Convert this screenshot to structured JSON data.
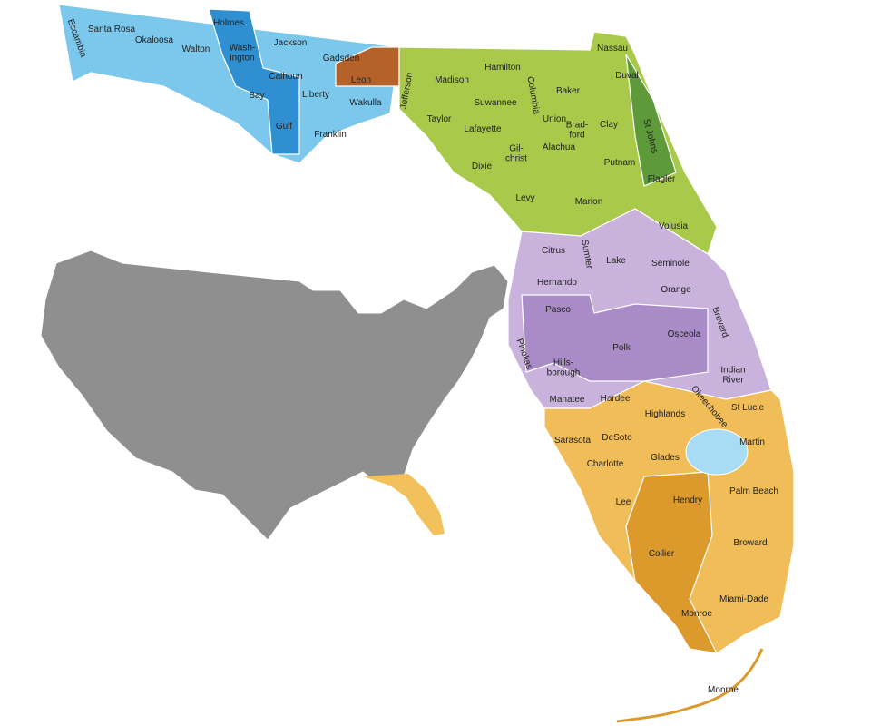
{
  "counties": [
    {
      "lines": [
        "Escambia"
      ]
    },
    {
      "lines": [
        "Santa Rosa"
      ]
    },
    {
      "lines": [
        "Okaloosa"
      ]
    },
    {
      "lines": [
        "Walton"
      ]
    },
    {
      "lines": [
        "Holmes"
      ]
    },
    {
      "lines": [
        "Wash-",
        "ington"
      ]
    },
    {
      "lines": [
        "Jackson"
      ]
    },
    {
      "lines": [
        "Calhoun"
      ]
    },
    {
      "lines": [
        "Bay"
      ]
    },
    {
      "lines": [
        "Gadsden"
      ]
    },
    {
      "lines": [
        "Liberty"
      ]
    },
    {
      "lines": [
        "Gulf"
      ]
    },
    {
      "lines": [
        "Franklin"
      ]
    },
    {
      "lines": [
        "Leon"
      ]
    },
    {
      "lines": [
        "Wakulla"
      ]
    },
    {
      "lines": [
        "Jefferson"
      ]
    },
    {
      "lines": [
        "Madison"
      ]
    },
    {
      "lines": [
        "Hamilton"
      ]
    },
    {
      "lines": [
        "Taylor"
      ]
    },
    {
      "lines": [
        "Suwannee"
      ]
    },
    {
      "lines": [
        "Lafayette"
      ]
    },
    {
      "lines": [
        "Columbia"
      ]
    },
    {
      "lines": [
        "Baker"
      ]
    },
    {
      "lines": [
        "Nassau"
      ]
    },
    {
      "lines": [
        "Duval"
      ]
    },
    {
      "lines": [
        "Union"
      ]
    },
    {
      "lines": [
        "Brad-",
        "ford"
      ]
    },
    {
      "lines": [
        "Clay"
      ]
    },
    {
      "lines": [
        "St Johns"
      ]
    },
    {
      "lines": [
        "Gil-",
        "christ"
      ]
    },
    {
      "lines": [
        "Alachua"
      ]
    },
    {
      "lines": [
        "Dixie"
      ]
    },
    {
      "lines": [
        "Putnam"
      ]
    },
    {
      "lines": [
        "Flagler"
      ]
    },
    {
      "lines": [
        "Levy"
      ]
    },
    {
      "lines": [
        "Marion"
      ]
    },
    {
      "lines": [
        "Volusia"
      ]
    },
    {
      "lines": [
        "Citrus"
      ]
    },
    {
      "lines": [
        "Sumter"
      ]
    },
    {
      "lines": [
        "Lake"
      ]
    },
    {
      "lines": [
        "Seminole"
      ]
    },
    {
      "lines": [
        "Hernando"
      ]
    },
    {
      "lines": [
        "Orange"
      ]
    },
    {
      "lines": [
        "Pasco"
      ]
    },
    {
      "lines": [
        "Brevard"
      ]
    },
    {
      "lines": [
        "Pinellas"
      ]
    },
    {
      "lines": [
        "Hills-",
        "borough"
      ]
    },
    {
      "lines": [
        "Polk"
      ]
    },
    {
      "lines": [
        "Osceola"
      ]
    },
    {
      "lines": [
        "Indian",
        "River"
      ]
    },
    {
      "lines": [
        "Manatee"
      ]
    },
    {
      "lines": [
        "Hardee"
      ]
    },
    {
      "lines": [
        "Okeechobee"
      ]
    },
    {
      "lines": [
        "St Lucie"
      ]
    },
    {
      "lines": [
        "Highlands"
      ]
    },
    {
      "lines": [
        "Sarasota"
      ]
    },
    {
      "lines": [
        "DeSoto"
      ]
    },
    {
      "lines": [
        "Martin"
      ]
    },
    {
      "lines": [
        "Charlotte"
      ]
    },
    {
      "lines": [
        "Glades"
      ]
    },
    {
      "lines": [
        "Palm Beach"
      ]
    },
    {
      "lines": [
        "Lee"
      ]
    },
    {
      "lines": [
        "Hendry"
      ]
    },
    {
      "lines": [
        "Broward"
      ]
    },
    {
      "lines": [
        "Collier"
      ]
    },
    {
      "lines": [
        "Miami-Dade"
      ]
    },
    {
      "lines": [
        "Monroe"
      ]
    },
    {
      "lines": [
        "Monroe"
      ]
    }
  ]
}
